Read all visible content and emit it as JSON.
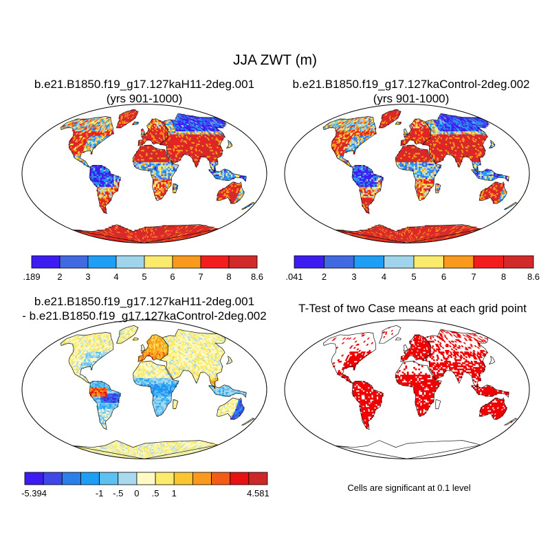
{
  "figure": {
    "title": "JJA ZWT (m)",
    "panel1": {
      "line1": "b.e21.B1850.f19_g17.127kaH11-2deg.001",
      "line2": "(yrs 901-1000)"
    },
    "panel2": {
      "line1": "b.e21.B1850.f19_g17.127kaControl-2deg.002",
      "line2": "(yrs 901-1000)"
    },
    "panel3": {
      "line1": "b.e21.B1850.f19_g17.127kaH11-2deg.001",
      "line2": "- b.e21.B1850.f19_g17.127kaControl-2deg.002"
    },
    "panel4": {
      "line1": "T-Test of two Case means at each grid point"
    },
    "significance_note": "Cells are significant at 0.1 level"
  },
  "chart_data": [
    {
      "type": "heatmap",
      "title": "b.e21.B1850.f19_g17.127kaH11-2deg.001 (yrs 901-1000)",
      "variable": "JJA ZWT (m)",
      "colorbar": {
        "colors": [
          "#3c1cf0",
          "#4169e1",
          "#1e9ef5",
          "#9fd4ec",
          "#fbeb6c",
          "#f99a1c",
          "#f41d1d",
          "#d22a2a"
        ],
        "tick_labels": [
          ".189",
          "2",
          "3",
          "4",
          "5",
          "6",
          "7",
          "8",
          "8.6"
        ],
        "min": 0.189,
        "max": 8.6
      },
      "regional_pattern": [
        {
          "region": "North America (north)",
          "level": "high"
        },
        {
          "region": "Eastern North America",
          "level": "mixed"
        },
        {
          "region": "Amazon",
          "level": "low"
        },
        {
          "region": "Southern South America",
          "level": "high"
        },
        {
          "region": "Europe",
          "level": "high"
        },
        {
          "region": "Northern Eurasia",
          "level": "low"
        },
        {
          "region": "Sahara / Middle East",
          "level": "high"
        },
        {
          "region": "Central Africa",
          "level": "mixed"
        },
        {
          "region": "South Asia",
          "level": "high"
        },
        {
          "region": "Southeast Asia",
          "level": "mixed"
        },
        {
          "region": "Australia",
          "level": "high"
        },
        {
          "region": "Antarctic coast",
          "level": "high"
        }
      ]
    },
    {
      "type": "heatmap",
      "title": "b.e21.B1850.f19_g17.127kaControl-2deg.002 (yrs 901-1000)",
      "variable": "JJA ZWT (m)",
      "colorbar": {
        "colors": [
          "#3c1cf0",
          "#4169e1",
          "#1e9ef5",
          "#9fd4ec",
          "#fbeb6c",
          "#f99a1c",
          "#f41d1d",
          "#d22a2a"
        ],
        "tick_labels": [
          ".041",
          "2",
          "3",
          "4",
          "5",
          "6",
          "7",
          "8",
          "8.6"
        ],
        "min": 0.041,
        "max": 8.6
      },
      "regional_pattern": [
        {
          "region": "North America (north)",
          "level": "high"
        },
        {
          "region": "Eastern North America",
          "level": "low"
        },
        {
          "region": "Amazon",
          "level": "low"
        },
        {
          "region": "Southern South America",
          "level": "high"
        },
        {
          "region": "Europe",
          "level": "high"
        },
        {
          "region": "Northern Eurasia",
          "level": "low"
        },
        {
          "region": "Sahara / Middle East",
          "level": "high"
        },
        {
          "region": "Central Africa",
          "level": "mixed"
        },
        {
          "region": "South Asia",
          "level": "high"
        },
        {
          "region": "Southeast Asia",
          "level": "mixed"
        },
        {
          "region": "Australia",
          "level": "mixed"
        },
        {
          "region": "Antarctic coast",
          "level": "high"
        }
      ]
    },
    {
      "type": "heatmap",
      "title": "b.e21.B1850.f19_g17.127kaH11-2deg.001 - b.e21.B1850.f19_g17.127kaControl-2deg.002",
      "variable": "JJA ZWT difference (m)",
      "colorbar": {
        "colors": [
          "#3c1cf0",
          "#3f48e6",
          "#2a7fe8",
          "#1e9ef5",
          "#5cc0f0",
          "#a9d9ee",
          "#fff9c4",
          "#fbeb6c",
          "#fbc532",
          "#f99a1c",
          "#f25c14",
          "#e81010",
          "#cc2828"
        ],
        "tick_labels": [
          "-5.394",
          "-1",
          "-.5",
          "0",
          ".5",
          "1",
          "4.581"
        ],
        "min": -5.394,
        "max": 4.581
      },
      "regional_pattern": [
        {
          "region": "Most land",
          "level": "near zero (slightly positive)"
        },
        {
          "region": "Eastern North America",
          "level": "slightly negative"
        },
        {
          "region": "Northern Amazon",
          "level": "strongly positive"
        },
        {
          "region": "Central Amazon",
          "level": "strongly negative"
        },
        {
          "region": "Europe",
          "level": "positive"
        },
        {
          "region": "Central Africa",
          "level": "negative"
        },
        {
          "region": "Southeast Asia",
          "level": "mixed"
        },
        {
          "region": "Eastern Australia",
          "level": "negative"
        }
      ]
    },
    {
      "type": "heatmap",
      "title": "T-Test of two Case means at each grid point",
      "colorbar": {
        "colors": [
          "#ee0000"
        ],
        "tick_labels": []
      },
      "significance_level": 0.1,
      "significant_regions": [
        "Eastern North America",
        "South America",
        "Europe",
        "Africa",
        "South Asia",
        "Southeast Asia",
        "Australia"
      ]
    }
  ]
}
